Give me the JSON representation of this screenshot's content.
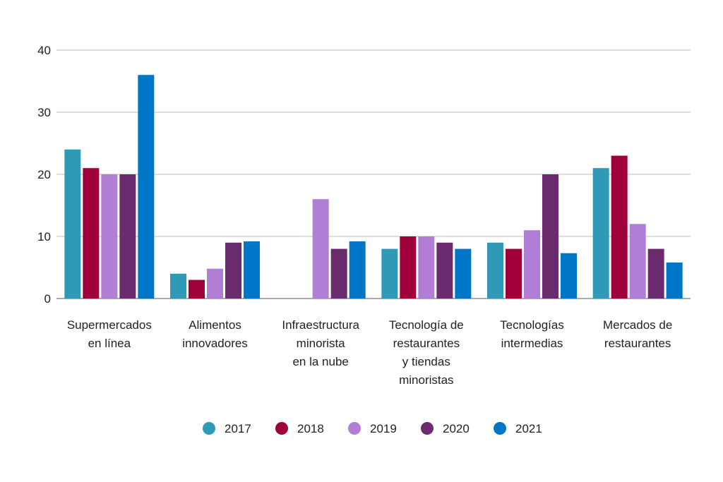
{
  "chart_data": {
    "type": "bar",
    "title": "",
    "xlabel": "",
    "ylabel": "",
    "ylim": [
      0,
      40
    ],
    "yticks": [
      "0",
      "10",
      "20",
      "30",
      "40"
    ],
    "grid": true,
    "legend_position": "bottom",
    "categories": [
      [
        "Supermercados",
        "en línea"
      ],
      [
        "Alimentos",
        "innovadores"
      ],
      [
        "Infraestructura",
        "minorista",
        "en la nube"
      ],
      [
        "Tecnología de",
        "restaurantes",
        "y tiendas",
        "minoristas"
      ],
      [
        "Tecnologías",
        "intermedias"
      ],
      [
        "Mercados de",
        "restaurantes"
      ]
    ],
    "series": [
      {
        "name": "2017",
        "color": "#2e9ab5",
        "values": [
          24,
          4,
          0,
          8,
          9,
          21
        ]
      },
      {
        "name": "2018",
        "color": "#a0003a",
        "values": [
          21,
          3,
          0,
          10,
          8,
          23
        ]
      },
      {
        "name": "2019",
        "color": "#b07ed4",
        "values": [
          20,
          4.8,
          16,
          10,
          11,
          12
        ]
      },
      {
        "name": "2020",
        "color": "#6a2c6e",
        "values": [
          20,
          9,
          8,
          9,
          20,
          8
        ]
      },
      {
        "name": "2021",
        "color": "#0076c8",
        "values": [
          36,
          9.2,
          9.2,
          8,
          7.3,
          5.8
        ]
      }
    ]
  }
}
